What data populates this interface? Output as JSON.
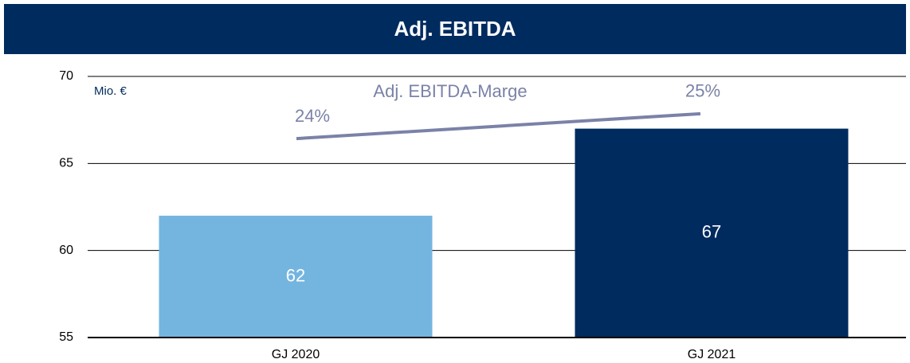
{
  "chart_data": {
    "type": "bar",
    "title": "Adj. EBITDA",
    "ylabel": "Mio. €",
    "categories": [
      "GJ 2020",
      "GJ 2021"
    ],
    "values": [
      62,
      67
    ],
    "colors": [
      "#74b5e0",
      "#002b5f"
    ],
    "ylim": [
      55,
      70
    ],
    "yticks": [
      55,
      60,
      65,
      70
    ],
    "grid": true,
    "line_series": {
      "name": "Adj. EBITDA-Marge",
      "values": [
        24,
        25
      ],
      "value_labels": [
        "24%",
        "25%"
      ],
      "color": "#7b82a8",
      "axis": "y2"
    },
    "y2lim": [
      16,
      26.5
    ]
  }
}
